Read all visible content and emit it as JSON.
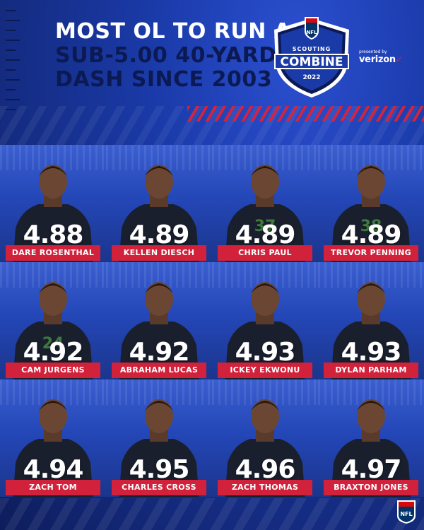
{
  "title": {
    "line1": "MOST OL TO RUN A",
    "line2": "SUB-5.00 40-YARD",
    "line3": "DASH SINCE 2003"
  },
  "badge": {
    "league": "NFL",
    "top": "SCOUTING",
    "main": "COMBINE",
    "year": "2022"
  },
  "sponsor": {
    "presented_by": "presented by",
    "brand": "verizon"
  },
  "players": [
    {
      "time": "4.88",
      "name": "DARE ROSENTHAL"
    },
    {
      "time": "4.89",
      "name": "KELLEN DIESCH"
    },
    {
      "time": "4.89",
      "name": "CHRIS PAUL",
      "jersey": "37"
    },
    {
      "time": "4.89",
      "name": "TREVOR PENNING",
      "jersey": "38"
    },
    {
      "time": "4.92",
      "name": "CAM JURGENS",
      "jersey": "24"
    },
    {
      "time": "4.92",
      "name": "ABRAHAM LUCAS"
    },
    {
      "time": "4.93",
      "name": "ICKEY EKWONU"
    },
    {
      "time": "4.93",
      "name": "DYLAN PARHAM"
    },
    {
      "time": "4.94",
      "name": "ZACH TOM"
    },
    {
      "time": "4.95",
      "name": "CHARLES CROSS"
    },
    {
      "time": "4.96",
      "name": "ZACH THOMAS"
    },
    {
      "time": "4.97",
      "name": "BRAXTON JONES"
    }
  ],
  "colors": {
    "background": "#17318f",
    "title_white": "#ffffff",
    "title_navy": "#0b1a52",
    "name_bar": "#d2213a"
  },
  "icons": {
    "badge": "nfl-combine-shield-icon",
    "corner": "nfl-shield-icon"
  }
}
